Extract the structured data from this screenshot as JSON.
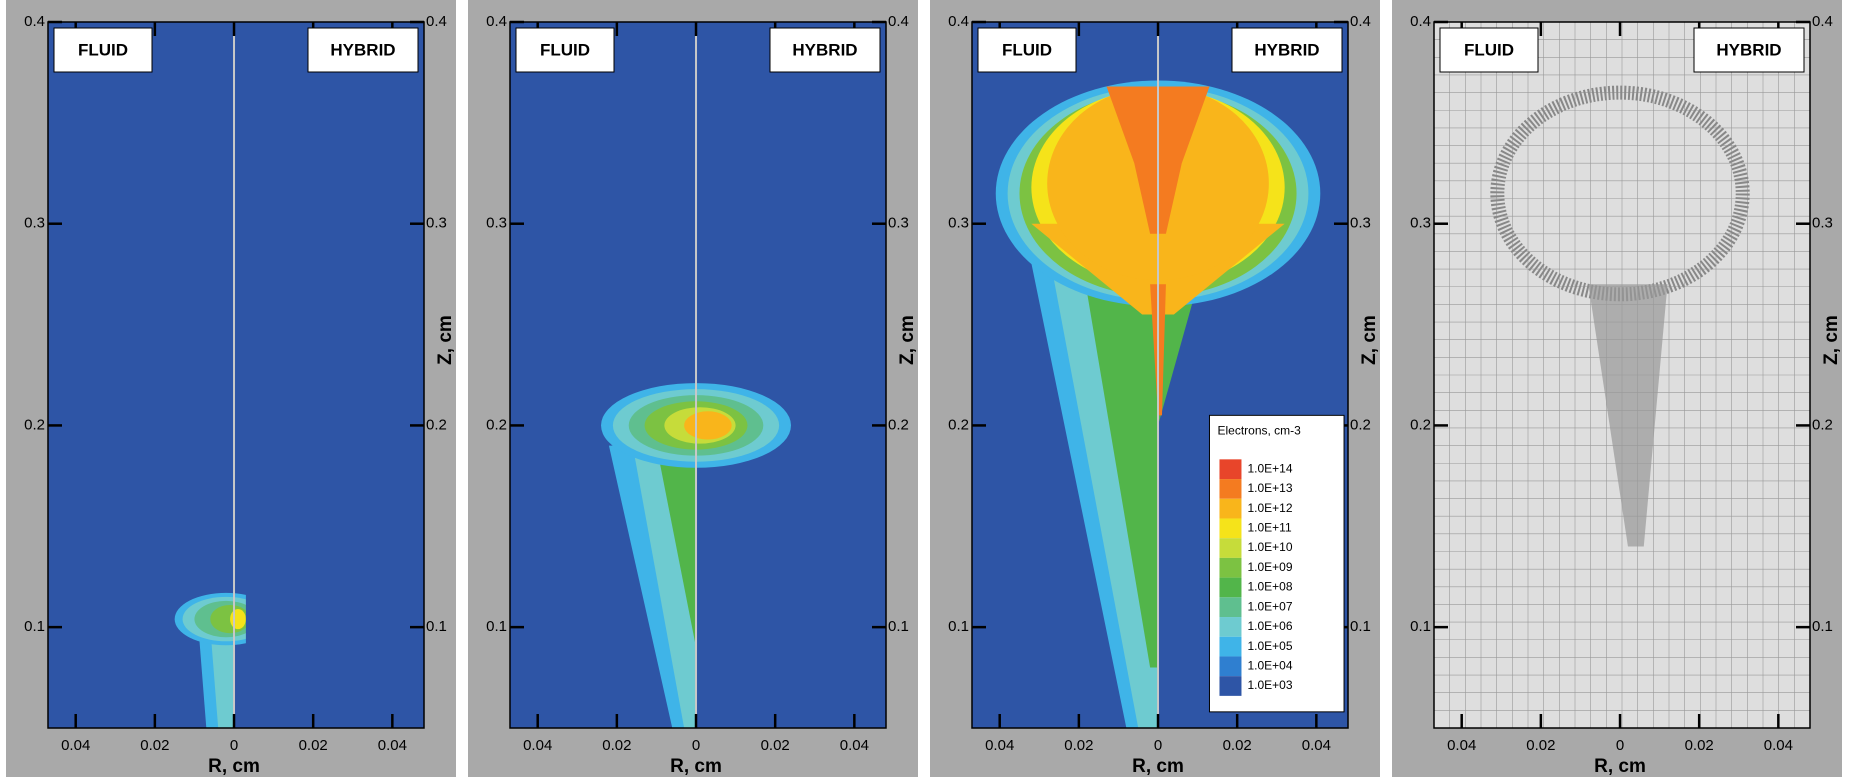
{
  "chart_data": [
    {
      "type": "contour",
      "left_label": "FLUID",
      "right_label": "HYBRID",
      "xlabel": "R, cm",
      "ylabel": "Z, cm",
      "xlim": [
        -0.047,
        0.048
      ],
      "ylim": [
        0.05,
        0.4
      ],
      "xticks": [
        {
          "value": -0.04,
          "label": "0.04"
        },
        {
          "value": -0.02,
          "label": "0.02"
        },
        0,
        0.02,
        0.04
      ],
      "yticks": [
        0.1,
        0.2,
        0.3,
        0.4
      ]
    },
    {
      "type": "contour",
      "left_label": "FLUID",
      "right_label": "HYBRID",
      "xlabel": "R, cm",
      "ylabel": "Z, cm",
      "xlim": [
        -0.047,
        0.048
      ],
      "ylim": [
        0.05,
        0.4
      ],
      "xticks": [
        {
          "value": -0.04,
          "label": "0.04"
        },
        {
          "value": -0.02,
          "label": "0.02"
        },
        0,
        0.02,
        0.04
      ],
      "yticks": [
        0.1,
        0.2,
        0.3,
        0.4
      ]
    },
    {
      "type": "contour",
      "left_label": "FLUID",
      "right_label": "HYBRID",
      "xlabel": "R, cm",
      "ylabel": "Z, cm",
      "xlim": [
        -0.047,
        0.048
      ],
      "ylim": [
        0.05,
        0.4
      ],
      "xticks": [
        {
          "value": -0.04,
          "label": "0.04"
        },
        {
          "value": -0.02,
          "label": "0.02"
        },
        0,
        0.02,
        0.04
      ],
      "yticks": [
        0.1,
        0.2,
        0.3,
        0.4
      ],
      "legend": {
        "title": "Electrons, cm-3",
        "levels": [
          {
            "label": "1.0E+14",
            "color": "#e8452a"
          },
          {
            "label": "1.0E+13",
            "color": "#f47b20"
          },
          {
            "label": "1.0E+12",
            "color": "#f9b51b"
          },
          {
            "label": "1.0E+11",
            "color": "#f5e31a"
          },
          {
            "label": "1.0E+10",
            "color": "#c6dc3a"
          },
          {
            "label": "1.0E+09",
            "color": "#7cc242"
          },
          {
            "label": "1.0E+08",
            "color": "#52b54a"
          },
          {
            "label": "1.0E+07",
            "color": "#5fbf8f"
          },
          {
            "label": "1.0E+06",
            "color": "#6ecbd0"
          },
          {
            "label": "1.0E+05",
            "color": "#3fb4e8"
          },
          {
            "label": "1.0E+04",
            "color": "#2f7fd0"
          },
          {
            "label": "1.0E+03",
            "color": "#2e55a6"
          }
        ]
      }
    },
    {
      "type": "mesh",
      "left_label": "FLUID",
      "right_label": "HYBRID",
      "xlabel": "R, cm",
      "ylabel": "Z, cm",
      "xlim": [
        -0.047,
        0.048
      ],
      "ylim": [
        0.05,
        0.4
      ],
      "xticks": [
        {
          "value": -0.04,
          "label": "0.04"
        },
        {
          "value": -0.02,
          "label": "0.02"
        },
        0,
        0.02,
        0.04
      ],
      "yticks": [
        0.1,
        0.2,
        0.3,
        0.4
      ]
    }
  ]
}
